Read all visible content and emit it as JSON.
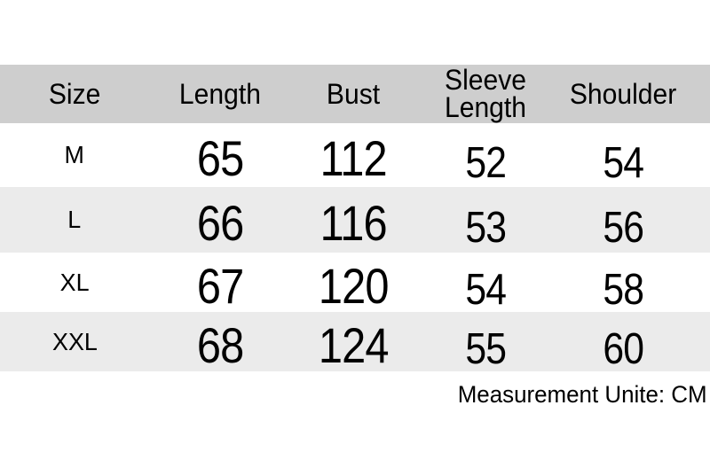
{
  "chart_data": {
    "type": "table",
    "columns": [
      "Size",
      "Length",
      "Bust",
      "Sleeve Length",
      "Shoulder"
    ],
    "rows": [
      [
        "M",
        65,
        112,
        52,
        54
      ],
      [
        "L",
        66,
        116,
        53,
        56
      ],
      [
        "XL",
        67,
        120,
        54,
        58
      ],
      [
        "XXL",
        68,
        124,
        55,
        60
      ]
    ],
    "note": "Measurement Unite: CM",
    "unit": "CM"
  },
  "colors": {
    "header_bg": "#cecece",
    "row_stripe_bg": "#ebebeb",
    "row_bg": "#ffffff",
    "text": "#000000",
    "page_bg": "#ffffff"
  }
}
